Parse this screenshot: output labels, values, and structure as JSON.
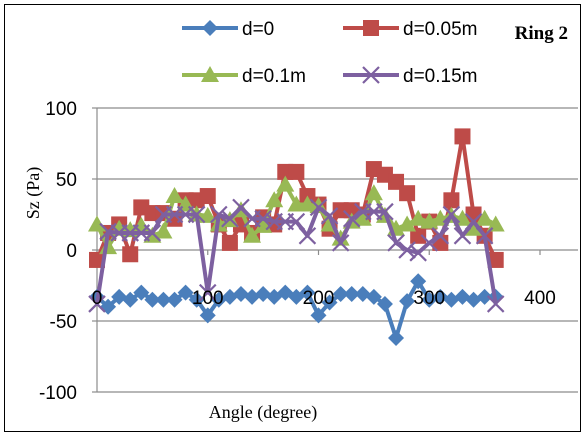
{
  "chart_data": {
    "type": "line",
    "title": "Ring 2",
    "xlabel": "Angle (degree)",
    "ylabel": "Sz (Pa)",
    "xlim": [
      0,
      400
    ],
    "ylim": [
      -100,
      100
    ],
    "x_ticks": [
      0,
      100,
      200,
      300,
      400
    ],
    "y_ticks": [
      100,
      50,
      0,
      -50,
      -100
    ],
    "grid": "horizontal",
    "legend": "top",
    "x": [
      0,
      10,
      20,
      30,
      40,
      50,
      60,
      70,
      80,
      90,
      100,
      110,
      120,
      130,
      140,
      150,
      160,
      170,
      180,
      190,
      200,
      210,
      220,
      230,
      240,
      250,
      260,
      270,
      280,
      290,
      300,
      310,
      320,
      330,
      340,
      350,
      360
    ],
    "series": [
      {
        "name": "d=0",
        "color": "#4a7ebb",
        "marker": "diamond",
        "values": [
          -33,
          -40,
          -33,
          -35,
          -30,
          -35,
          -35,
          -35,
          -30,
          -35,
          -46,
          -35,
          -33,
          -31,
          -33,
          -31,
          -33,
          -30,
          -33,
          -30,
          -46,
          -37,
          -31,
          -31,
          -31,
          -33,
          -38,
          -62,
          -36,
          -22,
          -35,
          -33,
          -35,
          -33,
          -35,
          -33,
          -33
        ]
      },
      {
        "name": "d=0.05m",
        "color": "#be4b48",
        "marker": "square",
        "values": [
          -7,
          12,
          18,
          -3,
          30,
          26,
          26,
          22,
          35,
          35,
          38,
          18,
          5,
          18,
          12,
          23,
          18,
          55,
          55,
          38,
          32,
          15,
          28,
          28,
          25,
          57,
          53,
          48,
          40,
          10,
          20,
          5,
          35,
          80,
          25,
          10,
          -7
        ]
      },
      {
        "name": "d=0.1m",
        "color": "#98b954",
        "marker": "triangle",
        "values": [
          18,
          2,
          15,
          14,
          17,
          10,
          13,
          38,
          32,
          25,
          24,
          18,
          21,
          28,
          10,
          17,
          35,
          46,
          32,
          32,
          31,
          18,
          8,
          20,
          22,
          40,
          24,
          15,
          18,
          22,
          20,
          22,
          24,
          22,
          15,
          22,
          18
        ]
      },
      {
        "name": "d=0.15m",
        "color": "#7d60a0",
        "marker": "x",
        "values": [
          -38,
          13,
          12,
          12,
          12,
          12,
          25,
          25,
          25,
          25,
          -30,
          25,
          22,
          30,
          22,
          22,
          20,
          20,
          20,
          10,
          30,
          24,
          5,
          22,
          27,
          27,
          27,
          5,
          0,
          -2,
          5,
          10,
          25,
          10,
          20,
          10,
          -38
        ]
      }
    ]
  }
}
